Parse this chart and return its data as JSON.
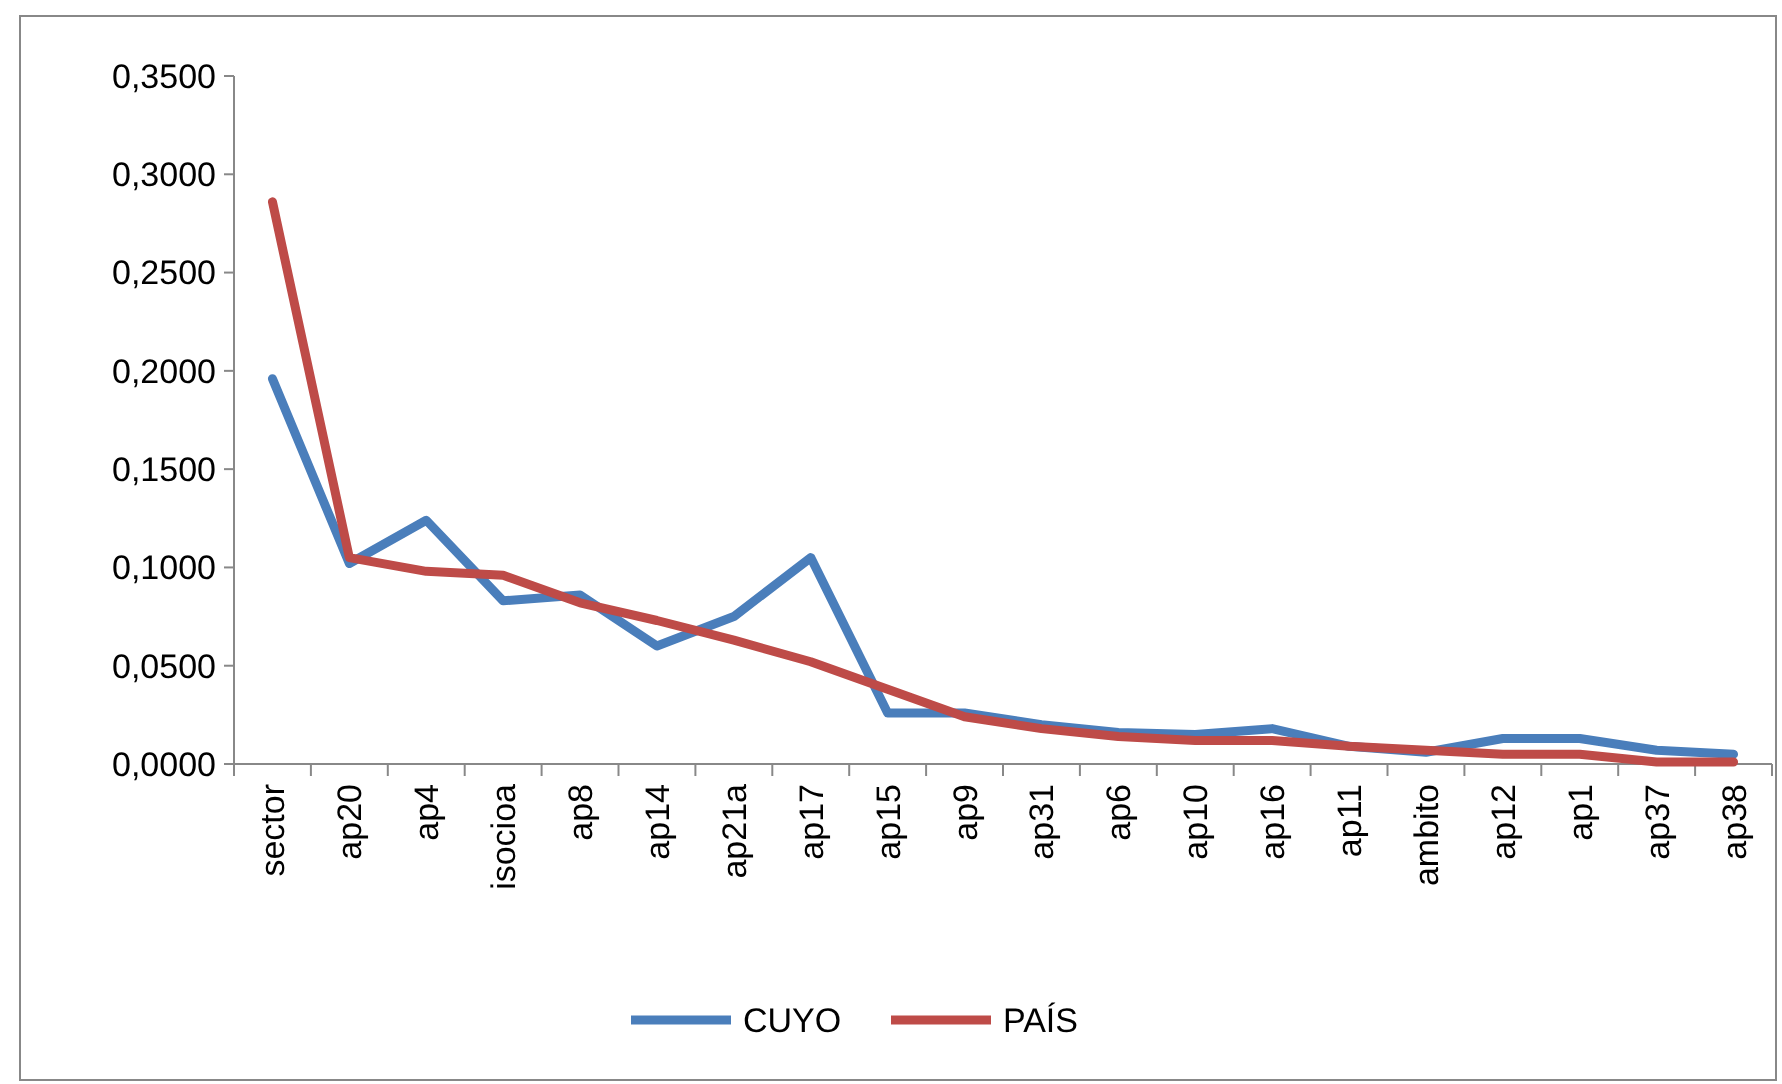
{
  "chart_data": {
    "type": "line",
    "categories": [
      "sector",
      "ap20",
      "ap4",
      "isocioa",
      "ap8",
      "ap14",
      "ap21a",
      "ap17",
      "ap15",
      "ap9",
      "ap31",
      "ap6",
      "ap10",
      "ap16",
      "ap11",
      "ambito",
      "ap12",
      "ap1",
      "ap37",
      "ap38"
    ],
    "series": [
      {
        "name": "CUYO",
        "color": "#4a7ebb",
        "values": [
          0.196,
          0.102,
          0.124,
          0.083,
          0.086,
          0.06,
          0.075,
          0.105,
          0.026,
          0.026,
          0.02,
          0.016,
          0.015,
          0.018,
          0.009,
          0.006,
          0.013,
          0.013,
          0.007,
          0.005
        ]
      },
      {
        "name": "PAÍS",
        "color": "#be4b48",
        "values": [
          0.286,
          0.105,
          0.098,
          0.096,
          0.082,
          0.073,
          0.063,
          0.052,
          0.038,
          0.024,
          0.018,
          0.014,
          0.012,
          0.012,
          0.009,
          0.007,
          0.005,
          0.005,
          0.001,
          0.001
        ]
      }
    ],
    "ylim": [
      0,
      0.35
    ],
    "yticks": [
      {
        "value": 0,
        "label": "0,0000"
      },
      {
        "value": 0.05,
        "label": "0,0500"
      },
      {
        "value": 0.1,
        "label": "0,1000"
      },
      {
        "value": 0.15,
        "label": "0,1500"
      },
      {
        "value": 0.2,
        "label": "0,2000"
      },
      {
        "value": 0.25,
        "label": "0,2500"
      },
      {
        "value": 0.3,
        "label": "0,3000"
      },
      {
        "value": 0.35,
        "label": "0,3500"
      }
    ],
    "grid": false,
    "legend": "bottom",
    "marker": "none",
    "line_style": "solid"
  }
}
